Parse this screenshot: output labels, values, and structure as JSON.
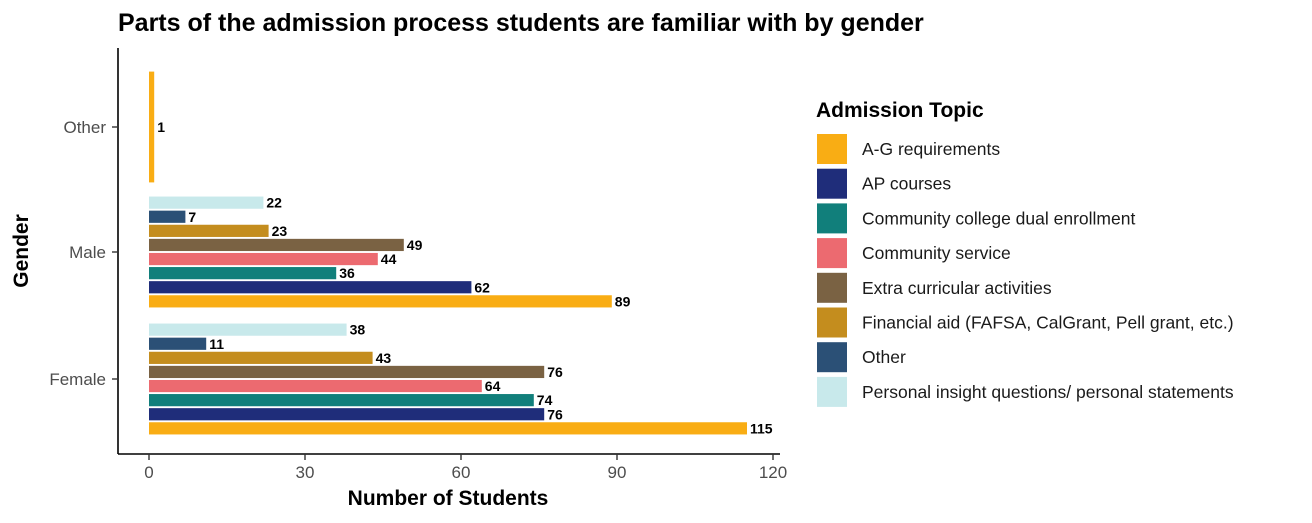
{
  "chart_data": {
    "type": "bar",
    "orientation": "horizontal",
    "title": "Parts of the admission process students are familiar with by gender",
    "xlabel": "Number of Students",
    "ylabel": "Gender",
    "categories": [
      "Female",
      "Male",
      "Other"
    ],
    "xlim": [
      0,
      120
    ],
    "xticks": [
      0,
      30,
      60,
      90,
      120
    ],
    "grid": false,
    "legend": {
      "title": "Admission Topic",
      "placement": "right"
    },
    "series": [
      {
        "name": "A-G requirements",
        "color": "#F9AD14",
        "values": [
          115,
          89,
          1
        ]
      },
      {
        "name": "AP courses",
        "color": "#1F2D7A",
        "values": [
          76,
          62,
          null
        ]
      },
      {
        "name": "Community college dual enrollment",
        "color": "#117F7B",
        "values": [
          74,
          36,
          null
        ]
      },
      {
        "name": "Community service",
        "color": "#EC6A70",
        "values": [
          64,
          44,
          null
        ]
      },
      {
        "name": "Extra curricular activities",
        "color": "#7A6243",
        "values": [
          76,
          49,
          null
        ]
      },
      {
        "name": "Financial aid (FAFSA, CalGrant, Pell grant, etc.)",
        "color": "#C48D1E",
        "values": [
          43,
          23,
          null
        ]
      },
      {
        "name": "Other",
        "color": "#2B5076",
        "values": [
          11,
          7,
          null
        ]
      },
      {
        "name": "Personal insight questions/ personal statements",
        "color": "#C8E9EB",
        "values": [
          38,
          22,
          null
        ]
      }
    ]
  }
}
